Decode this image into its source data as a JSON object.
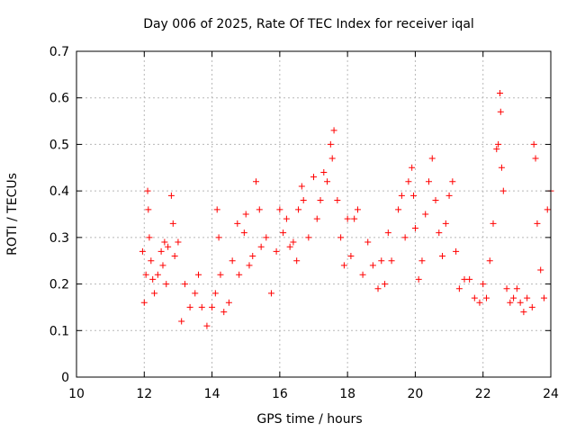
{
  "chart_data": {
    "type": "scatter",
    "title": "Day 006 of 2025, Rate Of TEC Index for receiver iqal",
    "xlabel": "GPS time / hours",
    "ylabel": "ROTI / TECUs",
    "xlim": [
      10,
      24
    ],
    "ylim": [
      0,
      0.7
    ],
    "xticks": [
      "10",
      "12",
      "14",
      "16",
      "18",
      "20",
      "22",
      "24"
    ],
    "yticks": [
      "0",
      "0.1",
      "0.2",
      "0.3",
      "0.4",
      "0.5",
      "0.6",
      "0.7"
    ],
    "grid": true,
    "marker": "+",
    "marker_color": "#ff0000",
    "series": [
      {
        "points": [
          [
            11.95,
            0.27
          ],
          [
            12.0,
            0.16
          ],
          [
            12.05,
            0.22
          ],
          [
            12.1,
            0.4
          ],
          [
            12.12,
            0.36
          ],
          [
            12.15,
            0.3
          ],
          [
            12.2,
            0.25
          ],
          [
            12.25,
            0.21
          ],
          [
            12.3,
            0.18
          ],
          [
            12.4,
            0.22
          ],
          [
            12.5,
            0.27
          ],
          [
            12.55,
            0.24
          ],
          [
            12.6,
            0.29
          ],
          [
            12.65,
            0.2
          ],
          [
            12.7,
            0.28
          ],
          [
            12.8,
            0.39
          ],
          [
            12.85,
            0.33
          ],
          [
            12.9,
            0.26
          ],
          [
            13.0,
            0.29
          ],
          [
            13.1,
            0.12
          ],
          [
            13.2,
            0.2
          ],
          [
            13.35,
            0.15
          ],
          [
            13.5,
            0.18
          ],
          [
            13.6,
            0.22
          ],
          [
            13.7,
            0.15
          ],
          [
            13.85,
            0.11
          ],
          [
            14.0,
            0.15
          ],
          [
            14.1,
            0.18
          ],
          [
            14.15,
            0.36
          ],
          [
            14.2,
            0.3
          ],
          [
            14.25,
            0.22
          ],
          [
            14.35,
            0.14
          ],
          [
            14.5,
            0.16
          ],
          [
            14.6,
            0.25
          ],
          [
            14.75,
            0.33
          ],
          [
            14.8,
            0.22
          ],
          [
            14.95,
            0.31
          ],
          [
            15.0,
            0.35
          ],
          [
            15.1,
            0.24
          ],
          [
            15.2,
            0.26
          ],
          [
            15.3,
            0.42
          ],
          [
            15.4,
            0.36
          ],
          [
            15.45,
            0.28
          ],
          [
            15.6,
            0.3
          ],
          [
            15.75,
            0.18
          ],
          [
            15.9,
            0.27
          ],
          [
            16.0,
            0.36
          ],
          [
            16.1,
            0.31
          ],
          [
            16.2,
            0.34
          ],
          [
            16.3,
            0.28
          ],
          [
            16.4,
            0.29
          ],
          [
            16.5,
            0.25
          ],
          [
            16.55,
            0.36
          ],
          [
            16.65,
            0.41
          ],
          [
            16.7,
            0.38
          ],
          [
            16.85,
            0.3
          ],
          [
            17.0,
            0.43
          ],
          [
            17.1,
            0.34
          ],
          [
            17.2,
            0.38
          ],
          [
            17.3,
            0.44
          ],
          [
            17.4,
            0.42
          ],
          [
            17.5,
            0.5
          ],
          [
            17.55,
            0.47
          ],
          [
            17.6,
            0.53
          ],
          [
            17.7,
            0.38
          ],
          [
            17.8,
            0.3
          ],
          [
            17.9,
            0.24
          ],
          [
            18.0,
            0.34
          ],
          [
            18.1,
            0.26
          ],
          [
            18.2,
            0.34
          ],
          [
            18.3,
            0.36
          ],
          [
            18.45,
            0.22
          ],
          [
            18.6,
            0.29
          ],
          [
            18.75,
            0.24
          ],
          [
            18.9,
            0.19
          ],
          [
            19.0,
            0.25
          ],
          [
            19.1,
            0.2
          ],
          [
            19.2,
            0.31
          ],
          [
            19.3,
            0.25
          ],
          [
            19.5,
            0.36
          ],
          [
            19.6,
            0.39
          ],
          [
            19.7,
            0.3
          ],
          [
            19.8,
            0.42
          ],
          [
            19.9,
            0.45
          ],
          [
            19.95,
            0.39
          ],
          [
            20.0,
            0.32
          ],
          [
            20.1,
            0.21
          ],
          [
            20.2,
            0.25
          ],
          [
            20.3,
            0.35
          ],
          [
            20.4,
            0.42
          ],
          [
            20.5,
            0.47
          ],
          [
            20.6,
            0.38
          ],
          [
            20.7,
            0.31
          ],
          [
            20.8,
            0.26
          ],
          [
            20.9,
            0.33
          ],
          [
            21.0,
            0.39
          ],
          [
            21.1,
            0.42
          ],
          [
            21.2,
            0.27
          ],
          [
            21.3,
            0.19
          ],
          [
            21.45,
            0.21
          ],
          [
            21.6,
            0.21
          ],
          [
            21.75,
            0.17
          ],
          [
            21.9,
            0.16
          ],
          [
            22.0,
            0.2
          ],
          [
            22.1,
            0.17
          ],
          [
            22.2,
            0.25
          ],
          [
            22.3,
            0.33
          ],
          [
            22.4,
            0.49
          ],
          [
            22.45,
            0.5
          ],
          [
            22.5,
            0.61
          ],
          [
            22.52,
            0.57
          ],
          [
            22.55,
            0.45
          ],
          [
            22.6,
            0.4
          ],
          [
            22.7,
            0.19
          ],
          [
            22.8,
            0.16
          ],
          [
            22.9,
            0.17
          ],
          [
            23.0,
            0.19
          ],
          [
            23.1,
            0.16
          ],
          [
            23.2,
            0.14
          ],
          [
            23.3,
            0.17
          ],
          [
            23.45,
            0.15
          ],
          [
            23.5,
            0.5
          ],
          [
            23.55,
            0.47
          ],
          [
            23.6,
            0.33
          ],
          [
            23.7,
            0.23
          ],
          [
            23.8,
            0.17
          ],
          [
            23.9,
            0.36
          ],
          [
            24.0,
            0.4
          ]
        ]
      }
    ]
  }
}
